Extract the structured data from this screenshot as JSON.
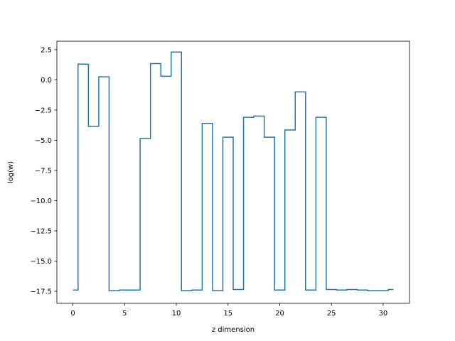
{
  "chart_data": {
    "type": "line",
    "drawstyle": "steps-mid",
    "title": "",
    "xlabel": "z dimension",
    "ylabel": "log(w)",
    "xlim": [
      -1.55,
      32.55
    ],
    "ylim": [
      -18.5,
      3.2
    ],
    "grid": false,
    "legend": "none",
    "x": [
      0,
      1,
      2,
      3,
      4,
      5,
      6,
      7,
      8,
      9,
      10,
      11,
      12,
      13,
      14,
      15,
      16,
      17,
      18,
      19,
      20,
      21,
      22,
      23,
      24,
      25,
      26,
      27,
      28,
      29,
      30,
      31
    ],
    "series": [
      {
        "color": "#1f77b4",
        "values": [
          -17.4,
          1.3,
          -3.85,
          0.25,
          -17.45,
          -17.4,
          -17.4,
          -4.85,
          1.35,
          0.3,
          2.3,
          -17.45,
          -17.4,
          -3.6,
          -17.45,
          -4.75,
          -17.35,
          -3.1,
          -3.0,
          -4.75,
          -17.4,
          -4.15,
          -1.0,
          -17.4,
          -3.1,
          -17.35,
          -17.4,
          -17.35,
          -17.4,
          -17.45,
          -17.45,
          -17.35
        ]
      }
    ],
    "xticks": [
      0,
      5,
      10,
      15,
      20,
      25,
      30
    ],
    "xtick_labels": [
      "0",
      "5",
      "10",
      "15",
      "20",
      "25",
      "30"
    ],
    "yticks": [
      2.5,
      0.0,
      -2.5,
      -5.0,
      -7.5,
      -10.0,
      -12.5,
      -15.0,
      -17.5
    ],
    "ytick_labels": [
      "2.5",
      "0.0",
      "−2.5",
      "−5.0",
      "−7.5",
      "−10.0",
      "−12.5",
      "−15.0",
      "−17.5"
    ]
  }
}
